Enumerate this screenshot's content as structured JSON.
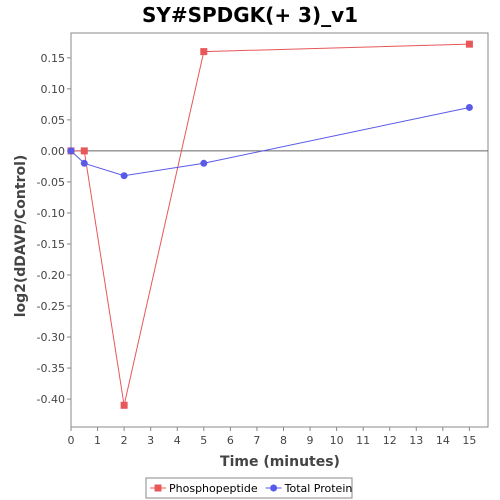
{
  "chart_data": {
    "type": "line",
    "title": "SY#SPDGK(+ 3)_v1",
    "xlabel": "Time (minutes)",
    "ylabel": "log2(dDAVP/Control)",
    "xlim": [
      0,
      15.7
    ],
    "ylim": [
      -0.445,
      0.19
    ],
    "xticks": [
      0,
      1,
      2,
      3,
      4,
      5,
      6,
      7,
      8,
      9,
      10,
      11,
      12,
      13,
      14,
      15
    ],
    "yticks": [
      -0.4,
      -0.35,
      -0.3,
      -0.25,
      -0.2,
      -0.15,
      -0.1,
      -0.05,
      0.0,
      0.05,
      0.1,
      0.15
    ],
    "ytick_labels": [
      "-0.40",
      "-0.35",
      "-0.30",
      "-0.25",
      "-0.20",
      "-0.15",
      "-0.10",
      "-0.05",
      "0.00",
      "0.05",
      "0.10",
      "0.15"
    ],
    "zero_line": true,
    "legend_position": "bottom",
    "series": [
      {
        "name": "Phosphopeptide",
        "color": "#e8575a",
        "marker": "square",
        "x": [
          0,
          0.5,
          2,
          5,
          15
        ],
        "y": [
          0.0,
          0.0,
          -0.41,
          0.16,
          0.172
        ]
      },
      {
        "name": "Total Protein",
        "color": "#5a5ae8",
        "marker": "circle",
        "x": [
          0,
          0.5,
          2,
          5,
          15
        ],
        "y": [
          0.0,
          -0.02,
          -0.04,
          -0.02,
          0.07
        ]
      }
    ]
  }
}
